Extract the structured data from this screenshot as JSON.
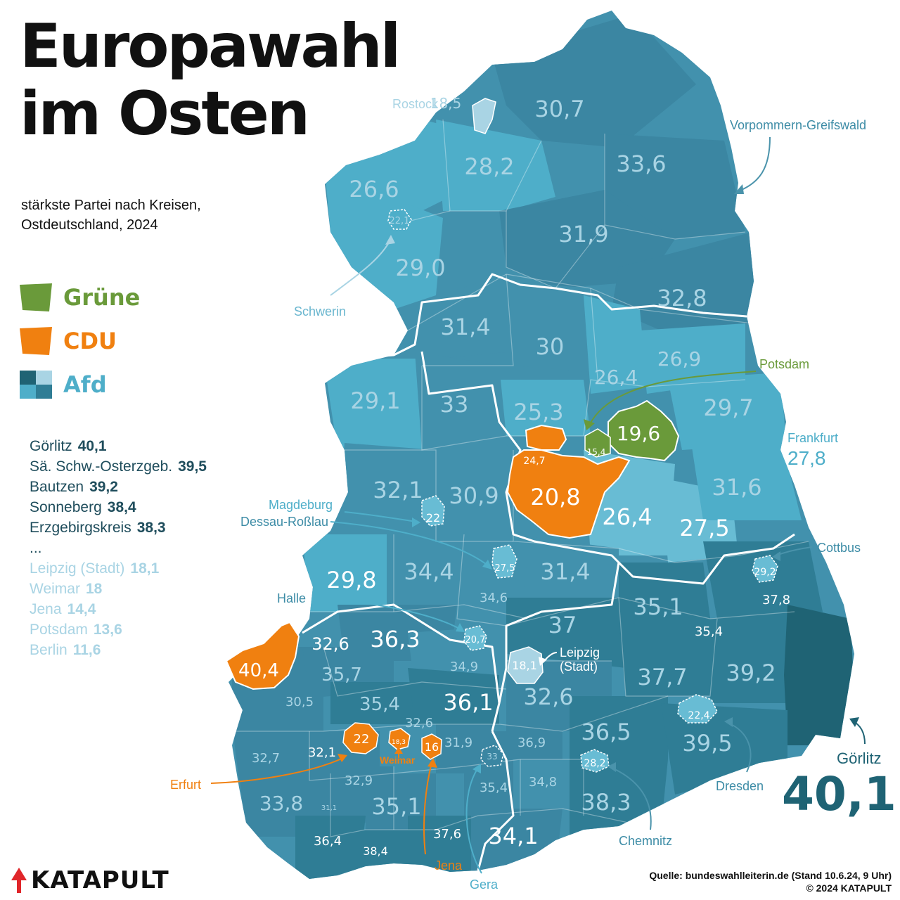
{
  "title_line1": "Europawahl",
  "title_line2": "im Osten",
  "subtitle_line1": "stärkste Partei nach Kreisen,",
  "subtitle_line2": "Ostdeutschland, 2024",
  "colors": {
    "gruene": "#6a9a3a",
    "cdu": "#f08010",
    "afd_light": "#a9d4e4",
    "afd_mid": "#4eaec9",
    "afd_dark": "#1f6374",
    "land": "#4291ad",
    "border": "#ffffff"
  },
  "legend": [
    {
      "party": "Grüne",
      "color": "#6a9a3a"
    },
    {
      "party": "CDU",
      "color": "#f08010"
    },
    {
      "party": "Afd",
      "color": "#4eaec9"
    }
  ],
  "ranking": {
    "top": [
      {
        "name": "Görlitz",
        "value": "40,1"
      },
      {
        "name": "Sä. Schw.-Osterzgeb.",
        "value": "39,5"
      },
      {
        "name": "Bautzen",
        "value": "39,2"
      },
      {
        "name": "Sonneberg",
        "value": "38,4"
      },
      {
        "name": "Erzgebirgskreis",
        "value": "38,3"
      }
    ],
    "ellipsis": "...",
    "bottom": [
      {
        "name": "Leipzig (Stadt)",
        "value": "18,1"
      },
      {
        "name": "Weimar",
        "value": "18"
      },
      {
        "name": "Jena",
        "value": "14,4"
      },
      {
        "name": "Potsdam",
        "value": "13,6"
      },
      {
        "name": "Berlin",
        "value": "11,6"
      }
    ]
  },
  "districts": [
    {
      "value": "18,5",
      "party": "Afd",
      "label": "Rostock"
    },
    {
      "value": "30,7",
      "party": "Afd"
    },
    {
      "value": "28,2",
      "party": "Afd"
    },
    {
      "value": "33,6",
      "party": "Afd"
    },
    {
      "value": "26,6",
      "party": "Afd"
    },
    {
      "value": "22,1",
      "party": "Afd",
      "label": "Schwerin"
    },
    {
      "value": "31,9",
      "party": "Afd"
    },
    {
      "value": "29,0",
      "party": "Afd"
    },
    {
      "value": "32,8",
      "party": "Afd"
    },
    {
      "value": "31,4",
      "party": "Afd"
    },
    {
      "value": "30",
      "party": "Afd"
    },
    {
      "value": "26,4",
      "party": "Afd"
    },
    {
      "value": "26,9",
      "party": "Afd"
    },
    {
      "value": "29,1",
      "party": "Afd"
    },
    {
      "value": "33",
      "party": "Afd"
    },
    {
      "value": "25,3",
      "party": "Afd"
    },
    {
      "value": "19,6",
      "party": "Grüne",
      "label": "Berlin"
    },
    {
      "value": "15,4",
      "party": "Grüne",
      "label": "Potsdam"
    },
    {
      "value": "29,7",
      "party": "Afd"
    },
    {
      "value": "27,8",
      "party": "Afd",
      "label": "Frankfurt"
    },
    {
      "value": "24,7",
      "party": "CDU"
    },
    {
      "value": "20,8",
      "party": "CDU"
    },
    {
      "value": "32,1",
      "party": "Afd"
    },
    {
      "value": "30,9",
      "party": "Afd"
    },
    {
      "value": "22",
      "party": "Afd",
      "label": "Magdeburg"
    },
    {
      "value": "26,4",
      "party": "Afd"
    },
    {
      "value": "27,5",
      "party": "Afd"
    },
    {
      "value": "31,6",
      "party": "Afd"
    },
    {
      "value": "29,2",
      "party": "Afd",
      "label": "Cottbus"
    },
    {
      "value": "27,5",
      "party": "Afd",
      "label": "Dessau-Roßlau"
    },
    {
      "value": "29,8",
      "party": "Afd"
    },
    {
      "value": "34,4",
      "party": "Afd"
    },
    {
      "value": "31,4",
      "party": "Afd"
    },
    {
      "value": "34,6",
      "party": "Afd"
    },
    {
      "value": "35,1",
      "party": "Afd"
    },
    {
      "value": "37,8",
      "party": "Afd"
    },
    {
      "value": "35,4",
      "party": "Afd"
    },
    {
      "value": "20,7",
      "party": "Afd",
      "label": "Halle"
    },
    {
      "value": "32,6",
      "party": "Afd"
    },
    {
      "value": "36,3",
      "party": "Afd"
    },
    {
      "value": "37",
      "party": "Afd"
    },
    {
      "value": "40,4",
      "party": "CDU"
    },
    {
      "value": "35,7",
      "party": "Afd"
    },
    {
      "value": "34,9",
      "party": "Afd"
    },
    {
      "value": "18,1",
      "party": "Afd",
      "label": "Leipzig (Stadt)"
    },
    {
      "value": "37,7",
      "party": "Afd"
    },
    {
      "value": "39,2",
      "party": "Afd"
    },
    {
      "value": "30,5",
      "party": "Afd"
    },
    {
      "value": "35,4",
      "party": "Afd"
    },
    {
      "value": "36,1",
      "party": "Afd"
    },
    {
      "value": "32,6",
      "party": "Afd"
    },
    {
      "value": "22,4",
      "party": "Afd",
      "label": "Dresden"
    },
    {
      "value": "32,6",
      "party": "Afd"
    },
    {
      "value": "36,5",
      "party": "Afd"
    },
    {
      "value": "22",
      "party": "CDU",
      "label": "Erfurt"
    },
    {
      "value": "18,3",
      "party": "CDU",
      "label": "Weimar"
    },
    {
      "value": "16",
      "party": "CDU",
      "label": "Jena"
    },
    {
      "value": "31,9",
      "party": "Afd"
    },
    {
      "value": "36,9",
      "party": "Afd"
    },
    {
      "value": "39,5",
      "party": "Afd"
    },
    {
      "value": "32,7",
      "party": "Afd"
    },
    {
      "value": "32,1",
      "party": "Afd"
    },
    {
      "value": "33",
      "party": "Afd",
      "label": "Gera"
    },
    {
      "value": "28,2",
      "party": "Afd",
      "label": "Chemnitz"
    },
    {
      "value": "32,9",
      "party": "Afd"
    },
    {
      "value": "35,4",
      "party": "Afd"
    },
    {
      "value": "34,8",
      "party": "Afd"
    },
    {
      "value": "33,8",
      "party": "Afd"
    },
    {
      "value": "31,1",
      "party": "Afd"
    },
    {
      "value": "35,1",
      "party": "Afd"
    },
    {
      "value": "38,3",
      "party": "Afd"
    },
    {
      "value": "36,4",
      "party": "Afd"
    },
    {
      "value": "38,4",
      "party": "Afd"
    },
    {
      "value": "37,6",
      "party": "Afd"
    },
    {
      "value": "34,1",
      "party": "Afd"
    },
    {
      "value": "40,1",
      "party": "Afd",
      "label": "Görlitz"
    }
  ],
  "callouts": {
    "rostock": "Rostock",
    "vorpommern": "Vorpommern-Greifswald",
    "schwerin": "Schwerin",
    "potsdam": "Potsdam",
    "frankfurt": "Frankfurt",
    "frankfurt_value": "27,8",
    "magdeburg": "Magdeburg",
    "dessau": "Dessau-Roßlau",
    "cottbus": "Cottbus",
    "halle": "Halle",
    "leipzig_1": "Leipzig",
    "leipzig_2": "(Stadt)",
    "weimar": "Weimar",
    "erfurt": "Erfurt",
    "jena": "Jena",
    "gera": "Gera",
    "chemnitz": "Chemnitz",
    "dresden": "Dresden",
    "goerlitz": "Görlitz",
    "goerlitz_value": "40,1"
  },
  "brand": "KATAPULT",
  "source_line1": "Quelle: bundeswahlleiterin.de (Stand 10.6.24, 9 Uhr)",
  "source_line2": "© 2024 KATAPULT"
}
